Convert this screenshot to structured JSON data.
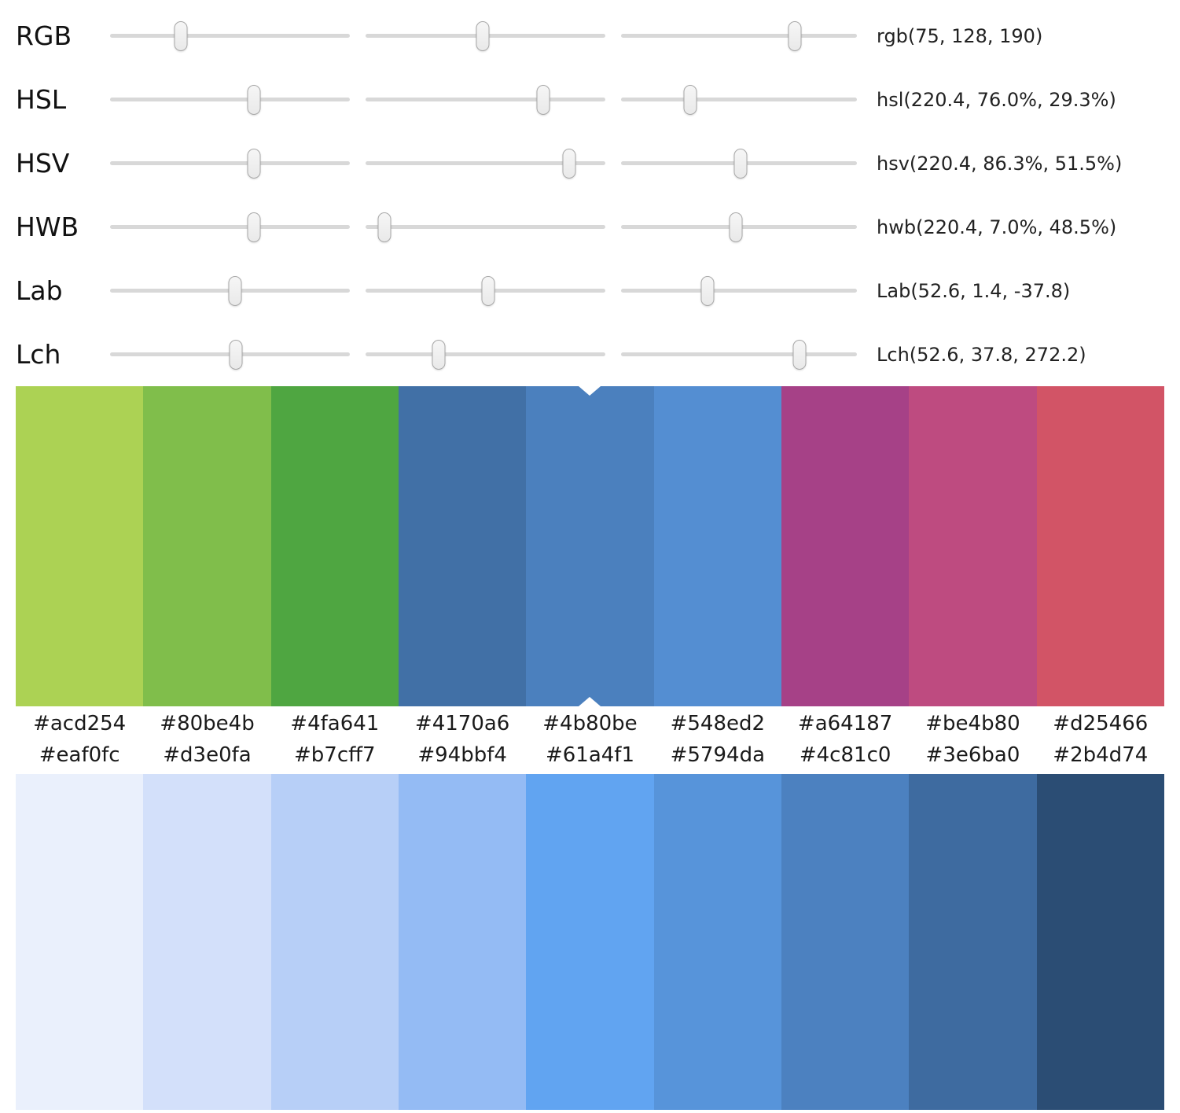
{
  "sliders": {
    "rows": [
      {
        "label": "RGB",
        "value": "rgb(75, 128, 190)",
        "positions": [
          29.4,
          49.0,
          73.5
        ]
      },
      {
        "label": "HSL",
        "value": "hsl(220.4, 76.0%, 29.3%)",
        "positions": [
          60.0,
          74.0,
          29.3
        ]
      },
      {
        "label": "HSV",
        "value": "hsv(220.4, 86.3%, 51.5%)",
        "positions": [
          60.0,
          85.0,
          50.5
        ]
      },
      {
        "label": "HWB",
        "value": "hwb(220.4, 7.0%, 48.5%)",
        "positions": [
          60.0,
          8.0,
          48.5
        ]
      },
      {
        "label": "Lab",
        "value": "Lab(52.6, 1.4, -37.8)",
        "positions": [
          52.0,
          51.0,
          36.5
        ]
      },
      {
        "label": "Lch",
        "value": "Lch(52.6, 37.8, 272.2)",
        "positions": [
          52.5,
          30.5,
          75.5
        ]
      }
    ]
  },
  "palette_top": {
    "selected_index": 4,
    "swatches": [
      "#acd254",
      "#80be4b",
      "#4fa641",
      "#4170a6",
      "#4b80be",
      "#548ed2",
      "#a64187",
      "#be4b80",
      "#d25466"
    ]
  },
  "palette_bottom": {
    "selected_index": null,
    "swatches": [
      "#eaf0fc",
      "#d3e0fa",
      "#b7cff7",
      "#94bbf4",
      "#61a4f1",
      "#5794da",
      "#4c81c0",
      "#3e6ba0",
      "#2b4d74"
    ]
  },
  "theme": {
    "track_color": "#d8d8d8",
    "handle_fill": "#efefef",
    "handle_border": "#a8a8a8",
    "background": "#ffffff"
  }
}
